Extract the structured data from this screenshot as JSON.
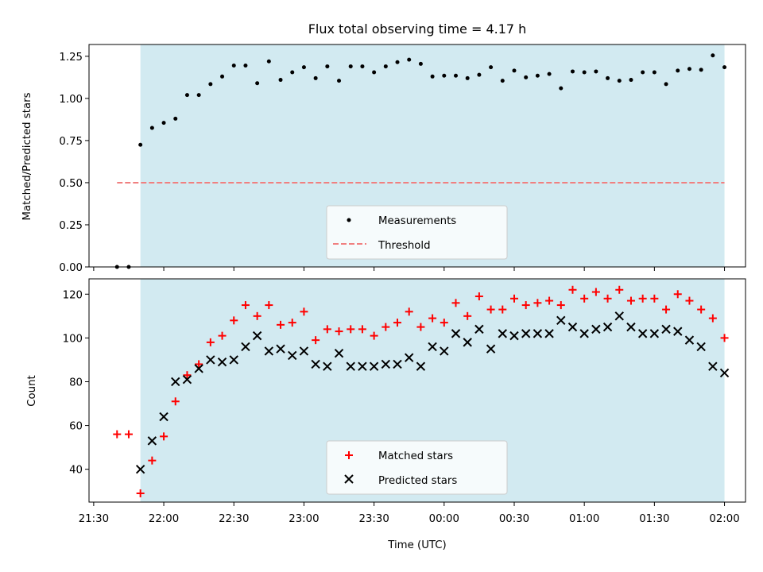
{
  "chart_data": [
    {
      "type": "scatter",
      "title": "Flux total observing time = 4.17 h",
      "xlabel": "",
      "ylabel": "Matched/Predicted stars",
      "ylim": [
        0,
        1.32
      ],
      "yticks": [
        "0.00",
        "0.25",
        "0.50",
        "0.75",
        "1.00",
        "1.25"
      ],
      "ytick_values": [
        0,
        0.25,
        0.5,
        0.75,
        1.0,
        1.25
      ],
      "xlim": [
        "21:28",
        "02:09"
      ],
      "observing_window": [
        "21:50",
        "02:00"
      ],
      "series": [
        {
          "name": "Measurements",
          "marker": "dot",
          "color": "#000000",
          "x": [
            "21:40",
            "21:45",
            "21:50",
            "21:55",
            "22:00",
            "22:05",
            "22:10",
            "22:15",
            "22:20",
            "22:25",
            "22:30",
            "22:35",
            "22:40",
            "22:45",
            "22:50",
            "22:55",
            "23:00",
            "23:05",
            "23:10",
            "23:15",
            "23:20",
            "23:25",
            "23:30",
            "23:35",
            "23:40",
            "23:45",
            "23:50",
            "23:55",
            "00:00",
            "00:05",
            "00:10",
            "00:15",
            "00:20",
            "00:25",
            "00:30",
            "00:35",
            "00:40",
            "00:45",
            "00:50",
            "00:55",
            "01:00",
            "01:05",
            "01:10",
            "01:15",
            "01:20",
            "01:25",
            "01:30",
            "01:35",
            "01:40",
            "01:45",
            "01:50",
            "01:55",
            "02:00"
          ],
          "values": [
            0.0,
            0.0,
            0.725,
            0.825,
            0.855,
            0.88,
            1.02,
            1.02,
            1.085,
            1.13,
            1.195,
            1.195,
            1.09,
            1.22,
            1.11,
            1.155,
            1.185,
            1.12,
            1.19,
            1.105,
            1.19,
            1.19,
            1.155,
            1.19,
            1.215,
            1.23,
            1.205,
            1.13,
            1.135,
            1.135,
            1.12,
            1.14,
            1.185,
            1.105,
            1.165,
            1.125,
            1.135,
            1.145,
            1.06,
            1.16,
            1.155,
            1.16,
            1.12,
            1.105,
            1.11,
            1.155,
            1.155,
            1.085,
            1.165,
            1.175,
            1.17,
            1.255,
            1.185
          ]
        },
        {
          "name": "Threshold",
          "marker": "dashed-line",
          "color": "#f08080",
          "x": [
            "21:40",
            "02:00"
          ],
          "values": [
            0.5,
            0.5
          ]
        }
      ],
      "legend": "lower-center"
    },
    {
      "type": "scatter",
      "title": "",
      "xlabel": "Time (UTC)",
      "ylabel": "Count",
      "ylim": [
        25,
        127
      ],
      "yticks": [
        "40",
        "60",
        "80",
        "100",
        "120"
      ],
      "ytick_values": [
        40,
        60,
        80,
        100,
        120
      ],
      "xlim": [
        "21:28",
        "02:09"
      ],
      "xticks": [
        "21:30",
        "22:00",
        "22:30",
        "23:00",
        "23:30",
        "00:00",
        "00:30",
        "01:00",
        "01:30",
        "02:00"
      ],
      "observing_window": [
        "21:50",
        "02:00"
      ],
      "x": [
        "21:40",
        "21:45",
        "21:50",
        "21:55",
        "22:00",
        "22:05",
        "22:10",
        "22:15",
        "22:20",
        "22:25",
        "22:30",
        "22:35",
        "22:40",
        "22:45",
        "22:50",
        "22:55",
        "23:00",
        "23:05",
        "23:10",
        "23:15",
        "23:20",
        "23:25",
        "23:30",
        "23:35",
        "23:40",
        "23:45",
        "23:50",
        "23:55",
        "00:00",
        "00:05",
        "00:10",
        "00:15",
        "00:20",
        "00:25",
        "00:30",
        "00:35",
        "00:40",
        "00:45",
        "00:50",
        "00:55",
        "01:00",
        "01:05",
        "01:10",
        "01:15",
        "01:20",
        "01:25",
        "01:30",
        "01:35",
        "01:40",
        "01:45",
        "01:50",
        "01:55",
        "02:00"
      ],
      "series": [
        {
          "name": "Matched stars",
          "marker": "plus",
          "color": "#ff0000",
          "values": [
            56,
            56,
            29,
            44,
            55,
            71,
            83,
            88,
            98,
            101,
            108,
            115,
            110,
            115,
            106,
            107,
            112,
            99,
            104,
            103,
            104,
            104,
            101,
            105,
            107,
            112,
            105,
            109,
            107,
            116,
            110,
            119,
            113,
            113,
            118,
            115,
            116,
            117,
            115,
            122,
            118,
            121,
            118,
            122,
            117,
            118,
            118,
            113,
            120,
            117,
            113,
            109,
            100
          ]
        },
        {
          "name": "Predicted stars",
          "marker": "x",
          "color": "#000000",
          "values": [
            null,
            null,
            40,
            53,
            64,
            80,
            81,
            86,
            90,
            89,
            90,
            96,
            101,
            94,
            95,
            92,
            94,
            88,
            87,
            93,
            87,
            87,
            87,
            88,
            88,
            91,
            87,
            96,
            94,
            102,
            98,
            104,
            95,
            102,
            101,
            102,
            102,
            102,
            108,
            105,
            102,
            104,
            105,
            110,
            105,
            102,
            102,
            104,
            103,
            99,
            96,
            87,
            84
          ]
        }
      ],
      "legend": "lower-center"
    }
  ],
  "colors": {
    "observing_window_fill": "#add8e6"
  }
}
